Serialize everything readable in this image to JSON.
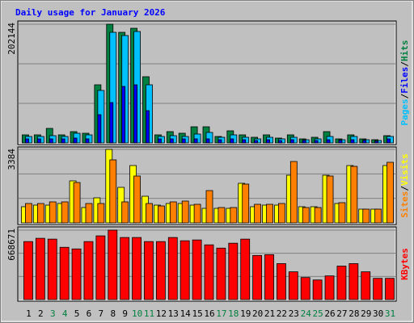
{
  "chart_data": [
    {
      "type": "bar",
      "title": "Daily usage for January 2026",
      "ylim": [
        0,
        202144
      ],
      "yticks": [
        202144
      ],
      "legend_separator": "/",
      "legend_order": [
        1,
        2,
        0
      ],
      "series": [
        {
          "name": "Hits",
          "color": "#008040",
          "values": [
            13750,
            13750,
            24750,
            13750,
            19250,
            16500,
            99000,
            202144,
            188380,
            195250,
            112750,
            13750,
            19250,
            16500,
            27500,
            27500,
            11000,
            20630,
            13750,
            9630,
            13750,
            8250,
            13750,
            6880,
            9630,
            19250,
            6880,
            13750,
            6880,
            5500,
            12380
          ]
        },
        {
          "name": "Pages",
          "color": "#00C0FF",
          "values": [
            11000,
            11000,
            12380,
            11000,
            16500,
            13750,
            89380,
            188380,
            182880,
            189750,
            99000,
            11000,
            12380,
            11000,
            15130,
            17880,
            9630,
            13750,
            9630,
            6880,
            9630,
            6880,
            9630,
            5500,
            6880,
            11000,
            5500,
            11000,
            5500,
            4130,
            11000
          ]
        },
        {
          "name": "Files",
          "color": "#0000FF",
          "values": [
            6880,
            6880,
            6880,
            6880,
            8250,
            6880,
            48130,
            68750,
            96250,
            99000,
            55000,
            6880,
            6880,
            6880,
            6880,
            6880,
            5500,
            6880,
            5500,
            4130,
            5500,
            4130,
            5500,
            4130,
            4130,
            5500,
            4130,
            5500,
            4130,
            2750,
            6880
          ]
        }
      ]
    },
    {
      "type": "bar",
      "ylim": [
        0,
        3384
      ],
      "yticks": [
        3384
      ],
      "legend_separator": "/",
      "legend_order": [
        1,
        0
      ],
      "series": [
        {
          "name": "Visits",
          "color": "#FFFF00",
          "values": [
            744,
            818,
            818,
            892,
            1934,
            707,
            1153,
            3384,
            1636,
            2640,
            1227,
            818,
            892,
            892,
            818,
            669,
            669,
            669,
            1822,
            744,
            818,
            818,
            2194,
            744,
            744,
            2194,
            892,
            2640,
            632,
            632,
            2640
          ]
        },
        {
          "name": "Sites",
          "color": "#FF8000",
          "values": [
            892,
            892,
            967,
            967,
            1859,
            892,
            892,
            2901,
            967,
            2157,
            892,
            781,
            967,
            1004,
            855,
            1487,
            707,
            707,
            1785,
            855,
            855,
            892,
            2826,
            707,
            707,
            2157,
            930,
            2603,
            632,
            632,
            2789
          ]
        }
      ]
    },
    {
      "type": "bar",
      "ylim": [
        0,
        668671
      ],
      "yticks": [
        668671
      ],
      "series": [
        {
          "name": "KBytes",
          "color": "#FF0000",
          "values": [
            558560,
            590020,
            582160,
            503490,
            487750,
            558560,
            613610,
            668671,
            597890,
            597890,
            558560,
            558560,
            597890,
            566420,
            574290,
            527080,
            495620,
            542820,
            582160,
            424810,
            432680,
            346140,
            267470,
            212400,
            188800,
            228140,
            322540,
            346140,
            267470,
            204540,
            204540
          ]
        }
      ],
      "categories": [
        "1",
        "2",
        "3",
        "4",
        "5",
        "6",
        "7",
        "8",
        "9",
        "10",
        "11",
        "12",
        "13",
        "14",
        "15",
        "16",
        "17",
        "18",
        "19",
        "20",
        "21",
        "22",
        "23",
        "24",
        "25",
        "26",
        "27",
        "28",
        "29",
        "30",
        "31"
      ],
      "category_colors": [
        "#000000",
        "#000000",
        "#008040",
        "#008040",
        "#000000",
        "#000000",
        "#000000",
        "#000000",
        "#000000",
        "#008040",
        "#008040",
        "#000000",
        "#000000",
        "#000000",
        "#000000",
        "#000000",
        "#008040",
        "#008040",
        "#000000",
        "#000000",
        "#000000",
        "#000000",
        "#000000",
        "#008040",
        "#008040",
        "#000000",
        "#000000",
        "#000000",
        "#000000",
        "#000000",
        "#008040"
      ]
    }
  ]
}
